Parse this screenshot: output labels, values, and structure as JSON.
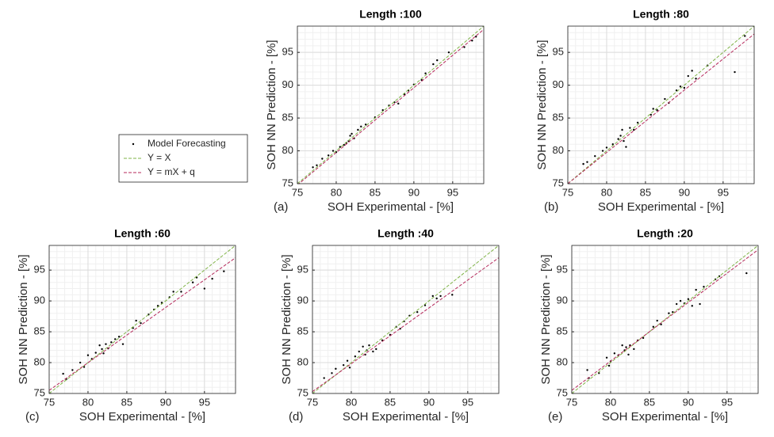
{
  "chart_data": [
    {
      "type": "scatter",
      "title": "Length :100",
      "panel_label": "(a)",
      "xlabel": "SOH Experimental - [%]",
      "ylabel": "SOH NN Prediction - [%]",
      "xlim": [
        75,
        99
      ],
      "ylim": [
        75,
        99
      ],
      "xticks": [
        75,
        80,
        85,
        90,
        95
      ],
      "yticks": [
        75,
        80,
        85,
        90,
        95
      ],
      "grid": true,
      "legend": "outside-left",
      "series": [
        {
          "name": "Model Forecasting",
          "color": "#000000",
          "mode": "markers",
          "x": [
            77,
            77.5,
            78.2,
            79,
            79.6,
            80,
            80.5,
            81,
            81.3,
            81.6,
            81.8,
            82,
            82.3,
            82.8,
            83.2,
            83.8,
            85,
            86,
            86.8,
            87.5,
            88,
            88.8,
            89.3,
            90,
            91,
            91.5,
            92.5,
            93,
            94.5,
            96.5,
            97.5,
            98
          ],
          "values": [
            77.5,
            77.8,
            78.8,
            79.3,
            80,
            79.8,
            80.6,
            80.9,
            81.2,
            81.5,
            82.3,
            82.6,
            81.9,
            83.2,
            83.7,
            84,
            85.1,
            86.2,
            86.9,
            87.4,
            87.2,
            88.6,
            89.2,
            90.1,
            90.8,
            91.8,
            93.2,
            93.8,
            95,
            95.8,
            96.8,
            97.4
          ]
        },
        {
          "name": "Y = X",
          "color": "#7fb347",
          "mode": "dashed-line",
          "x": [
            75,
            99
          ],
          "values": [
            75,
            99
          ]
        },
        {
          "name": "Y = mX + q",
          "color": "#b5295b",
          "mode": "dashed-line",
          "x": [
            75,
            99
          ],
          "values": [
            74.8,
            98.5
          ]
        }
      ]
    },
    {
      "type": "scatter",
      "title": "Length :80",
      "panel_label": "(b)",
      "xlabel": "SOH Experimental - [%]",
      "ylabel": "SOH NN Prediction - [%]",
      "xlim": [
        75,
        99
      ],
      "ylim": [
        75,
        99
      ],
      "xticks": [
        75,
        80,
        85,
        90,
        95
      ],
      "yticks": [
        75,
        80,
        85,
        90,
        95
      ],
      "grid": true,
      "series": [
        {
          "color": "#000000",
          "mode": "markers",
          "x": [
            77,
            77.5,
            78.5,
            79.5,
            80,
            80.8,
            81.5,
            81.8,
            82,
            82.2,
            82.5,
            83,
            83.5,
            84,
            85.7,
            86,
            86.5,
            87.5,
            88,
            89,
            89.5,
            90,
            90.5,
            91,
            91.5,
            93,
            96.5,
            97.8
          ],
          "values": [
            78,
            78.3,
            79.2,
            80,
            80.5,
            81,
            81.8,
            82.3,
            83.2,
            81.5,
            80.6,
            83.5,
            83.2,
            84.3,
            85.5,
            86.4,
            86.2,
            87.9,
            87.3,
            89.2,
            89.8,
            89.6,
            91.4,
            92.2,
            91,
            93,
            92,
            97.5
          ]
        },
        {
          "color": "#7fb347",
          "mode": "dashed-line",
          "x": [
            75,
            99
          ],
          "values": [
            75,
            99
          ]
        },
        {
          "color": "#b5295b",
          "mode": "dashed-line",
          "x": [
            75,
            99
          ],
          "values": [
            75,
            97.8
          ]
        }
      ]
    },
    {
      "type": "scatter",
      "title": "Length :60",
      "panel_label": "(c)",
      "xlabel": "SOH Experimental - [%]",
      "ylabel": "SOH NN Prediction - [%]",
      "xlim": [
        75,
        99
      ],
      "ylim": [
        75,
        99
      ],
      "xticks": [
        75,
        80,
        85,
        90,
        95
      ],
      "yticks": [
        75,
        80,
        85,
        90,
        95
      ],
      "grid": true,
      "series": [
        {
          "color": "#000000",
          "mode": "markers",
          "x": [
            76.8,
            77.2,
            78,
            79,
            79.5,
            80,
            80.5,
            81,
            81.5,
            81.8,
            82,
            82.3,
            82.6,
            83,
            83.5,
            84,
            84.5,
            85.8,
            86.2,
            86.8,
            87.8,
            88.5,
            89,
            89.5,
            90.5,
            91,
            92,
            93.5,
            94,
            95,
            96,
            97.5
          ],
          "values": [
            78.2,
            77.3,
            78.8,
            80,
            79.3,
            81.2,
            80.6,
            81.6,
            82.8,
            82.2,
            81.5,
            83,
            82.3,
            83.3,
            83.8,
            84.2,
            83,
            85.6,
            86.8,
            86.4,
            87.8,
            88.6,
            89.2,
            89.7,
            90.6,
            91.5,
            91.5,
            93,
            93.8,
            92,
            93.6,
            94.8
          ]
        },
        {
          "color": "#7fb347",
          "mode": "dashed-line",
          "x": [
            75,
            99
          ],
          "values": [
            75,
            99
          ]
        },
        {
          "color": "#b5295b",
          "mode": "dashed-line",
          "x": [
            75,
            99
          ],
          "values": [
            75.5,
            97
          ]
        }
      ]
    },
    {
      "type": "scatter",
      "title": "Length :40",
      "panel_label": "(d)",
      "xlabel": "SOH Experimental - [%]",
      "ylabel": "SOH NN Prediction - [%]",
      "xlim": [
        75,
        99
      ],
      "ylim": [
        75,
        99
      ],
      "xticks": [
        75,
        80,
        85,
        90,
        95
      ],
      "yticks": [
        75,
        80,
        85,
        90,
        95
      ],
      "grid": true,
      "series": [
        {
          "color": "#000000",
          "mode": "markers",
          "x": [
            76.5,
            77.5,
            78,
            79,
            79.5,
            79.8,
            80.5,
            81,
            81.5,
            81.8,
            82,
            82.3,
            82.8,
            83.2,
            84,
            85,
            85.8,
            86.3,
            86.8,
            87.5,
            88.5,
            89.5,
            90.5,
            91,
            91.5,
            93
          ],
          "values": [
            77.5,
            78.3,
            79,
            79.6,
            80.3,
            79.2,
            81,
            81.8,
            82.6,
            81.3,
            82,
            82.8,
            81.8,
            82.2,
            83.6,
            84.5,
            85.8,
            85.5,
            86.7,
            87.6,
            88.2,
            89.3,
            90.8,
            90.4,
            90.8,
            91
          ]
        },
        {
          "color": "#7fb347",
          "mode": "dashed-line",
          "x": [
            75,
            99
          ],
          "values": [
            75,
            99
          ]
        },
        {
          "color": "#b5295b",
          "mode": "dashed-line",
          "x": [
            75,
            99
          ],
          "values": [
            75.3,
            97
          ]
        }
      ]
    },
    {
      "type": "scatter",
      "title": "Length :20",
      "panel_label": "(e)",
      "xlabel": "SOH Experimental - [%]",
      "ylabel": "SOH NN Prediction - [%]",
      "xlim": [
        75,
        99
      ],
      "ylim": [
        75,
        99
      ],
      "xticks": [
        75,
        80,
        85,
        90,
        95
      ],
      "yticks": [
        75,
        80,
        85,
        90,
        95
      ],
      "grid": true,
      "series": [
        {
          "color": "#000000",
          "mode": "markers",
          "x": [
            77,
            77.2,
            78.5,
            79.5,
            79.8,
            80,
            80.5,
            81,
            81.5,
            81.8,
            82,
            82.3,
            82.5,
            83,
            83.5,
            84.2,
            85.5,
            86,
            86.5,
            87.5,
            88,
            88.5,
            89,
            89.5,
            90,
            90.5,
            91,
            91.5,
            92,
            93.5,
            94,
            97.5
          ],
          "values": [
            78.8,
            77.5,
            78.3,
            80.8,
            79.5,
            80.2,
            81.5,
            81.2,
            82.8,
            82,
            82.5,
            81.3,
            82.8,
            82.2,
            83.6,
            84,
            85.8,
            86.8,
            86.2,
            88,
            88.2,
            89.5,
            90,
            89.6,
            90.3,
            89.2,
            91.8,
            89.5,
            92.3,
            93.5,
            94,
            94.5
          ]
        },
        {
          "color": "#7fb347",
          "mode": "dashed-line",
          "x": [
            75,
            99
          ],
          "values": [
            75,
            99
          ]
        },
        {
          "color": "#b5295b",
          "mode": "dashed-line",
          "x": [
            75,
            99
          ],
          "values": [
            75.5,
            98.3
          ]
        }
      ]
    }
  ]
}
